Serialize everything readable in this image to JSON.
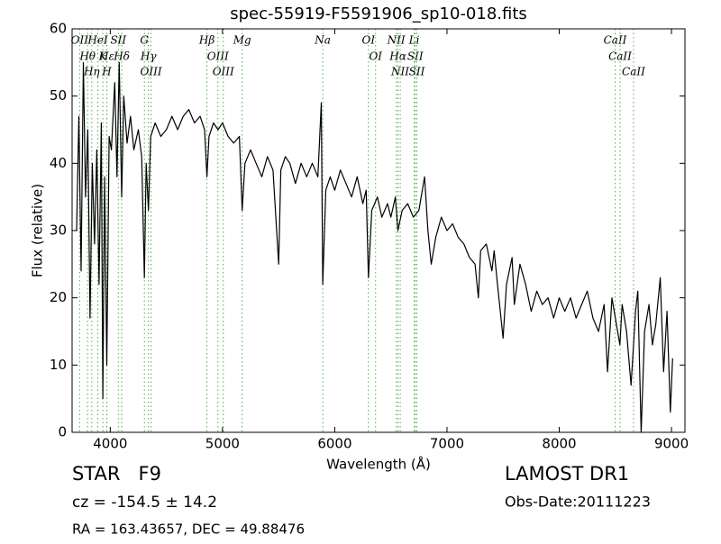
{
  "chart_data": {
    "type": "line",
    "title": "spec-55919-F5591906_sp10-018.fits",
    "x_label": "Wavelength (Å)",
    "y_label": "Flux (relative)",
    "xlim": [
      3660,
      9120
    ],
    "ylim": [
      0,
      60
    ],
    "xticks": [
      4000,
      5000,
      6000,
      7000,
      8000,
      9000
    ],
    "yticks": [
      0,
      10,
      20,
      30,
      40,
      50,
      60
    ],
    "color": "#000000",
    "line_color": "#4daf4a",
    "x": [
      3700,
      3720,
      3740,
      3760,
      3780,
      3800,
      3820,
      3840,
      3860,
      3880,
      3900,
      3920,
      3934,
      3950,
      3969,
      3990,
      4010,
      4040,
      4060,
      4080,
      4102,
      4120,
      4150,
      4180,
      4210,
      4250,
      4280,
      4304,
      4320,
      4340,
      4360,
      4400,
      4450,
      4500,
      4550,
      4600,
      4650,
      4700,
      4750,
      4800,
      4840,
      4861,
      4880,
      4920,
      4960,
      5000,
      5050,
      5100,
      5150,
      5175,
      5200,
      5250,
      5300,
      5350,
      5400,
      5450,
      5500,
      5520,
      5560,
      5600,
      5650,
      5700,
      5750,
      5800,
      5850,
      5880,
      5893,
      5920,
      5960,
      6000,
      6050,
      6100,
      6150,
      6200,
      6250,
      6280,
      6300,
      6330,
      6380,
      6420,
      6470,
      6500,
      6540,
      6563,
      6600,
      6650,
      6700,
      6750,
      6800,
      6830,
      6860,
      6900,
      6950,
      7000,
      7050,
      7100,
      7150,
      7200,
      7250,
      7280,
      7300,
      7350,
      7400,
      7420,
      7450,
      7500,
      7530,
      7580,
      7600,
      7650,
      7700,
      7750,
      7800,
      7850,
      7900,
      7950,
      8000,
      8050,
      8100,
      8150,
      8200,
      8250,
      8300,
      8350,
      8400,
      8430,
      8470,
      8500,
      8540,
      8560,
      8600,
      8640,
      8680,
      8700,
      8730,
      8760,
      8800,
      8830,
      8860,
      8900,
      8930,
      8960,
      8990,
      9010
    ],
    "values": [
      30,
      47,
      24,
      55,
      35,
      45,
      17,
      40,
      28,
      42,
      22,
      46,
      5,
      38,
      10,
      44,
      42,
      52,
      38,
      55,
      35,
      50,
      43,
      47,
      42,
      45,
      41,
      23,
      40,
      33,
      44,
      46,
      44,
      45,
      47,
      45,
      47,
      48,
      46,
      47,
      45,
      38,
      44,
      46,
      45,
      46,
      44,
      43,
      44,
      33,
      40,
      42,
      40,
      38,
      41,
      39,
      25,
      39,
      41,
      40,
      37,
      40,
      38,
      40,
      38,
      49,
      22,
      36,
      38,
      36,
      39,
      37,
      35,
      38,
      34,
      36,
      23,
      33,
      35,
      32,
      34,
      32,
      35,
      30,
      33,
      34,
      32,
      33,
      38,
      30,
      25,
      29,
      32,
      30,
      31,
      29,
      28,
      26,
      25,
      20,
      27,
      28,
      24,
      27,
      22,
      14,
      22,
      26,
      19,
      25,
      22,
      18,
      21,
      19,
      20,
      17,
      20,
      18,
      20,
      17,
      19,
      21,
      17,
      15,
      19,
      9,
      20,
      17,
      13,
      19,
      15,
      7,
      18,
      21,
      0,
      15,
      19,
      13,
      16,
      23,
      9,
      18,
      3,
      11
    ],
    "lines": [
      {
        "label": "OII",
        "wavelength": 3727
      },
      {
        "label": "Hθ",
        "wavelength": 3798
      },
      {
        "label": "Hη",
        "wavelength": 3835
      },
      {
        "label": "HeI",
        "wavelength": 3889
      },
      {
        "label": "K",
        "wavelength": 3934
      },
      {
        "label": "H",
        "wavelength": 3969
      },
      {
        "label": "Hε",
        "wavelength": 3970
      },
      {
        "label": "SII",
        "wavelength": 4072
      },
      {
        "label": "Hδ",
        "wavelength": 4102
      },
      {
        "label": "G",
        "wavelength": 4304
      },
      {
        "label": "Hγ",
        "wavelength": 4340
      },
      {
        "label": "OIII",
        "wavelength": 4363
      },
      {
        "label": "Hβ",
        "wavelength": 4861
      },
      {
        "label": "OIII",
        "wavelength": 4959
      },
      {
        "label": "OIII",
        "wavelength": 5007
      },
      {
        "label": "Mg",
        "wavelength": 5175
      },
      {
        "label": "Na",
        "wavelength": 5893
      },
      {
        "label": "OI",
        "wavelength": 6300
      },
      {
        "label": "OI",
        "wavelength": 6364
      },
      {
        "label": "NII",
        "wavelength": 6548
      },
      {
        "label": "Hα",
        "wavelength": 6563
      },
      {
        "label": "NII",
        "wavelength": 6583
      },
      {
        "label": "Li",
        "wavelength": 6708
      },
      {
        "label": "SII",
        "wavelength": 6717
      },
      {
        "label": "SII",
        "wavelength": 6731
      },
      {
        "label": "CaII",
        "wavelength": 8498
      },
      {
        "label": "CaII",
        "wavelength": 8542
      },
      {
        "label": "CaII",
        "wavelength": 8662
      }
    ],
    "info": {
      "class": "STAR   F9",
      "redshift": "cz = -154.5 ± 14.2",
      "coords": "RA = 163.43657, DEC = 49.88476",
      "survey": "LAMOST DR1",
      "obs_date": "Obs-Date:20111223"
    }
  }
}
